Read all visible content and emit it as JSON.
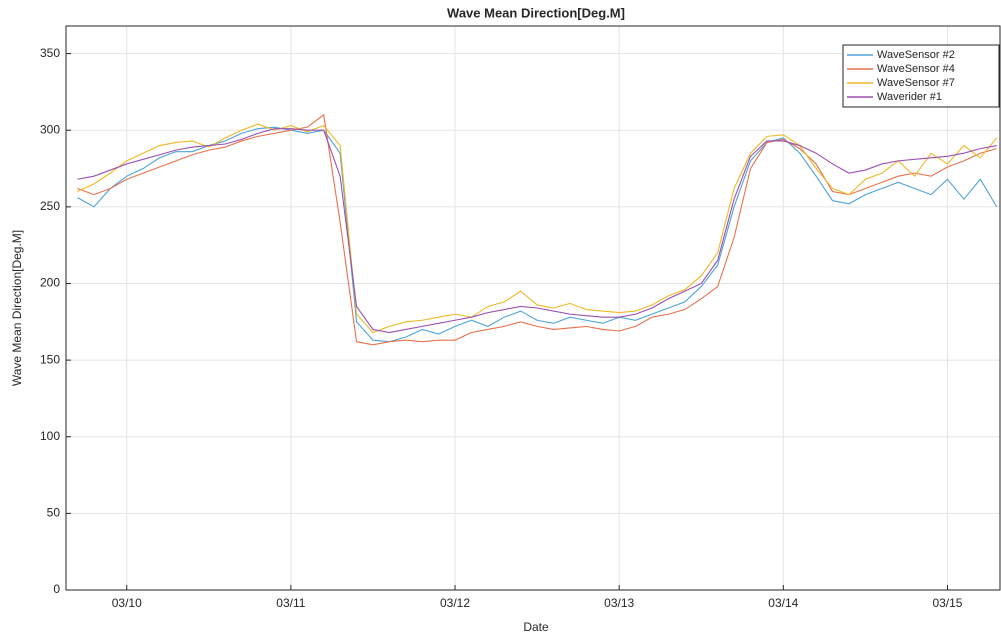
{
  "chart_data": {
    "type": "line",
    "title": "Wave Mean Direction[Deg.M]",
    "x_label": "Date",
    "y_label": "Wave Mean Direction[Deg.M]",
    "x": [
      9.7,
      9.8,
      9.9,
      10.0,
      10.1,
      10.2,
      10.3,
      10.4,
      10.5,
      10.6,
      10.7,
      10.8,
      10.9,
      11.0,
      11.1,
      11.2,
      11.3,
      11.4,
      11.5,
      11.6,
      11.7,
      11.8,
      11.9,
      12.0,
      12.1,
      12.2,
      12.3,
      12.4,
      12.5,
      12.6,
      12.7,
      12.8,
      12.9,
      13.0,
      13.1,
      13.2,
      13.3,
      13.4,
      13.5,
      13.6,
      13.7,
      13.8,
      13.9,
      14.0,
      14.1,
      14.2,
      14.3,
      14.4,
      14.5,
      14.6,
      14.7,
      14.8,
      14.9,
      15.0,
      15.1,
      15.2,
      15.3
    ],
    "series": [
      {
        "name": "WaveSensor #2",
        "color": "#4ea3d8",
        "values": [
          256,
          250,
          262,
          270,
          275,
          282,
          286,
          286,
          290,
          293,
          298,
          301,
          302,
          300,
          298,
          300,
          285,
          175,
          163,
          162,
          165,
          170,
          167,
          172,
          176,
          172,
          178,
          182,
          176,
          174,
          178,
          176,
          174,
          178,
          176,
          180,
          184,
          188,
          198,
          212,
          250,
          280,
          292,
          295,
          285,
          270,
          254,
          252,
          258,
          262,
          266,
          262,
          258,
          268,
          255,
          268,
          250
        ]
      },
      {
        "name": "WaveSensor #4",
        "color": "#e8714c",
        "values": [
          262,
          258,
          262,
          268,
          272,
          276,
          280,
          284,
          287,
          289,
          293,
          296,
          298,
          300,
          302,
          310,
          240,
          162,
          160,
          162,
          163,
          162,
          163,
          163,
          168,
          170,
          172,
          175,
          172,
          170,
          171,
          172,
          170,
          169,
          172,
          178,
          180,
          183,
          190,
          198,
          230,
          275,
          292,
          294,
          288,
          278,
          260,
          258,
          262,
          266,
          270,
          272,
          270,
          276,
          280,
          285,
          288
        ]
      },
      {
        "name": "WaveSensor #7",
        "color": "#efb823",
        "values": [
          260,
          265,
          272,
          280,
          285,
          290,
          292,
          293,
          289,
          295,
          300,
          304,
          300,
          303,
          299,
          303,
          290,
          180,
          168,
          172,
          175,
          176,
          178,
          180,
          178,
          185,
          188,
          195,
          186,
          184,
          187,
          183,
          182,
          181,
          182,
          186,
          192,
          196,
          205,
          220,
          262,
          285,
          296,
          297,
          290,
          275,
          262,
          258,
          268,
          272,
          280,
          270,
          285,
          278,
          290,
          282,
          295
        ]
      },
      {
        "name": "Waverider #1",
        "color": "#9b4fb0",
        "values": [
          268,
          270,
          274,
          278,
          281,
          284,
          287,
          289,
          290,
          291,
          294,
          298,
          301,
          301,
          300,
          300,
          270,
          185,
          170,
          168,
          170,
          172,
          174,
          176,
          178,
          181,
          183,
          185,
          184,
          182,
          180,
          179,
          178,
          178,
          180,
          184,
          190,
          195,
          200,
          215,
          255,
          283,
          293,
          293,
          290,
          285,
          278,
          272,
          274,
          278,
          280,
          281,
          282,
          283,
          285,
          288,
          290
        ]
      }
    ],
    "xlim": [
      9.63,
      15.32
    ],
    "xticks": [
      {
        "value": 10,
        "label": "03/10"
      },
      {
        "value": 11,
        "label": "03/11"
      },
      {
        "value": 12,
        "label": "03/12"
      },
      {
        "value": 13,
        "label": "03/13"
      },
      {
        "value": 14,
        "label": "03/14"
      },
      {
        "value": 15,
        "label": "03/15"
      }
    ],
    "ylim": [
      0,
      368
    ],
    "yticks": [
      0,
      50,
      100,
      150,
      200,
      250,
      300,
      350
    ],
    "grid": true,
    "legend": "top-right"
  }
}
